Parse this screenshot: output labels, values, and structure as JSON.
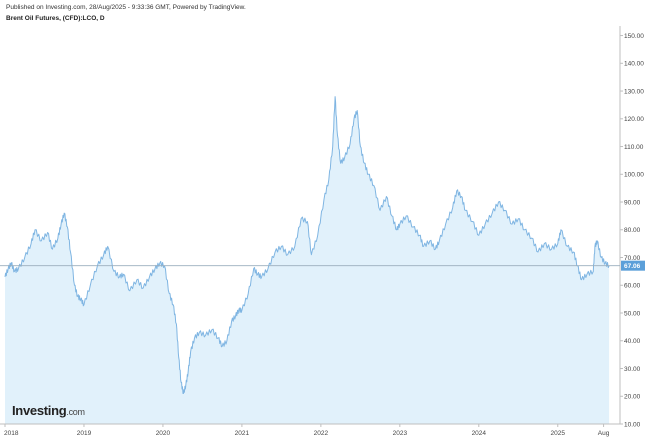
{
  "header": {
    "published": "Published on Investing.com, 28/Aug/2025 - 9:33:36 GMT, Powered by TradingView.",
    "symbol": "Brent Oil Futures, (CFD):LCO, D"
  },
  "logo": {
    "main": "Investing",
    "suffix": ".com"
  },
  "colors": {
    "line": "#7fb5e2",
    "fill": "#e1f1fb",
    "price_line": "#9aaebd",
    "label_bg": "#5b9fd9",
    "axis": "#bfbfbf"
  },
  "chart_data": {
    "type": "area",
    "title": "Brent Oil Futures, (CFD):LCO, D",
    "xlabel": "",
    "ylabel": "",
    "ylim": [
      10,
      152
    ],
    "xlim": [
      2018.0,
      2025.75
    ],
    "grid": false,
    "y_ticks": [
      "150.00",
      "140.00",
      "130.00",
      "120.00",
      "110.00",
      "100.00",
      "90.00",
      "80.00",
      "70.00",
      "60.00",
      "50.00",
      "40.00",
      "30.00",
      "20.00",
      "10.00"
    ],
    "y_tick_values": [
      150,
      140,
      130,
      120,
      110,
      100,
      90,
      80,
      70,
      60,
      50,
      40,
      30,
      20,
      10
    ],
    "x_ticks": [
      "2018",
      "2019",
      "2020",
      "2021",
      "2022",
      "2023",
      "2024",
      "2025",
      "Aug"
    ],
    "x_tick_values": [
      2018.0,
      2019.0,
      2020.0,
      2021.0,
      2022.0,
      2023.0,
      2024.0,
      2025.0,
      2025.58
    ],
    "last_price": 67.06,
    "last_price_label": "67.06",
    "series": [
      {
        "x": [
          2018.0,
          2018.04,
          2018.08,
          2018.12,
          2018.17,
          2018.25,
          2018.33,
          2018.38,
          2018.46,
          2018.54,
          2018.6,
          2018.67,
          2018.71,
          2018.75,
          2018.79,
          2018.83,
          2018.88,
          2018.92,
          2018.96,
          2019.0,
          2019.08,
          2019.17,
          2019.25,
          2019.3,
          2019.38,
          2019.45,
          2019.5,
          2019.58,
          2019.67,
          2019.75,
          2019.83,
          2019.9,
          2019.96,
          2020.02,
          2020.08,
          2020.13,
          2020.17,
          2020.2,
          2020.23,
          2020.26,
          2020.29,
          2020.32,
          2020.35,
          2020.4,
          2020.46,
          2020.54,
          2020.62,
          2020.7,
          2020.75,
          2020.81,
          2020.87,
          2020.92,
          2020.96,
          2021.0,
          2021.08,
          2021.15,
          2021.2,
          2021.25,
          2021.33,
          2021.42,
          2021.5,
          2021.58,
          2021.67,
          2021.75,
          2021.83,
          2021.88,
          2021.96,
          2022.04,
          2022.1,
          2022.15,
          2022.18,
          2022.21,
          2022.25,
          2022.3,
          2022.37,
          2022.42,
          2022.46,
          2022.5,
          2022.55,
          2022.6,
          2022.67,
          2022.75,
          2022.83,
          2022.9,
          2022.96,
          2023.0,
          2023.08,
          2023.17,
          2023.25,
          2023.3,
          2023.38,
          2023.45,
          2023.5,
          2023.58,
          2023.67,
          2023.72,
          2023.78,
          2023.83,
          2023.92,
          2024.0,
          2024.08,
          2024.17,
          2024.25,
          2024.33,
          2024.42,
          2024.5,
          2024.58,
          2024.67,
          2024.75,
          2024.83,
          2024.92,
          2025.0,
          2025.04,
          2025.12,
          2025.2,
          2025.25,
          2025.3,
          2025.37,
          2025.45,
          2025.47,
          2025.5,
          2025.55,
          2025.6,
          2025.65
        ],
        "y": [
          63,
          66,
          68,
          65,
          66,
          70,
          75,
          80,
          76,
          79,
          73,
          77,
          82,
          86,
          81,
          72,
          60,
          56,
          55,
          53,
          60,
          67,
          71,
          74,
          65,
          63,
          64,
          58,
          62,
          59,
          63,
          66,
          68,
          67,
          57,
          53,
          46,
          34,
          25,
          21,
          24,
          29,
          36,
          41,
          43,
          42,
          44,
          41,
          38,
          40,
          47,
          49,
          51,
          51,
          57,
          66,
          64,
          63,
          66,
          72,
          74,
          71,
          74,
          84,
          83,
          71,
          78,
          91,
          98,
          110,
          128,
          114,
          104,
          106,
          111,
          120,
          123,
          110,
          104,
          100,
          96,
          87,
          92,
          85,
          80,
          82,
          85,
          81,
          78,
          74,
          76,
          73,
          76,
          82,
          88,
          94,
          92,
          87,
          83,
          78,
          82,
          86,
          90,
          87,
          82,
          84,
          80,
          77,
          72,
          75,
          73,
          75,
          80,
          74,
          72,
          67,
          62,
          64,
          65,
          74,
          76,
          70,
          68,
          67
        ]
      }
    ]
  }
}
